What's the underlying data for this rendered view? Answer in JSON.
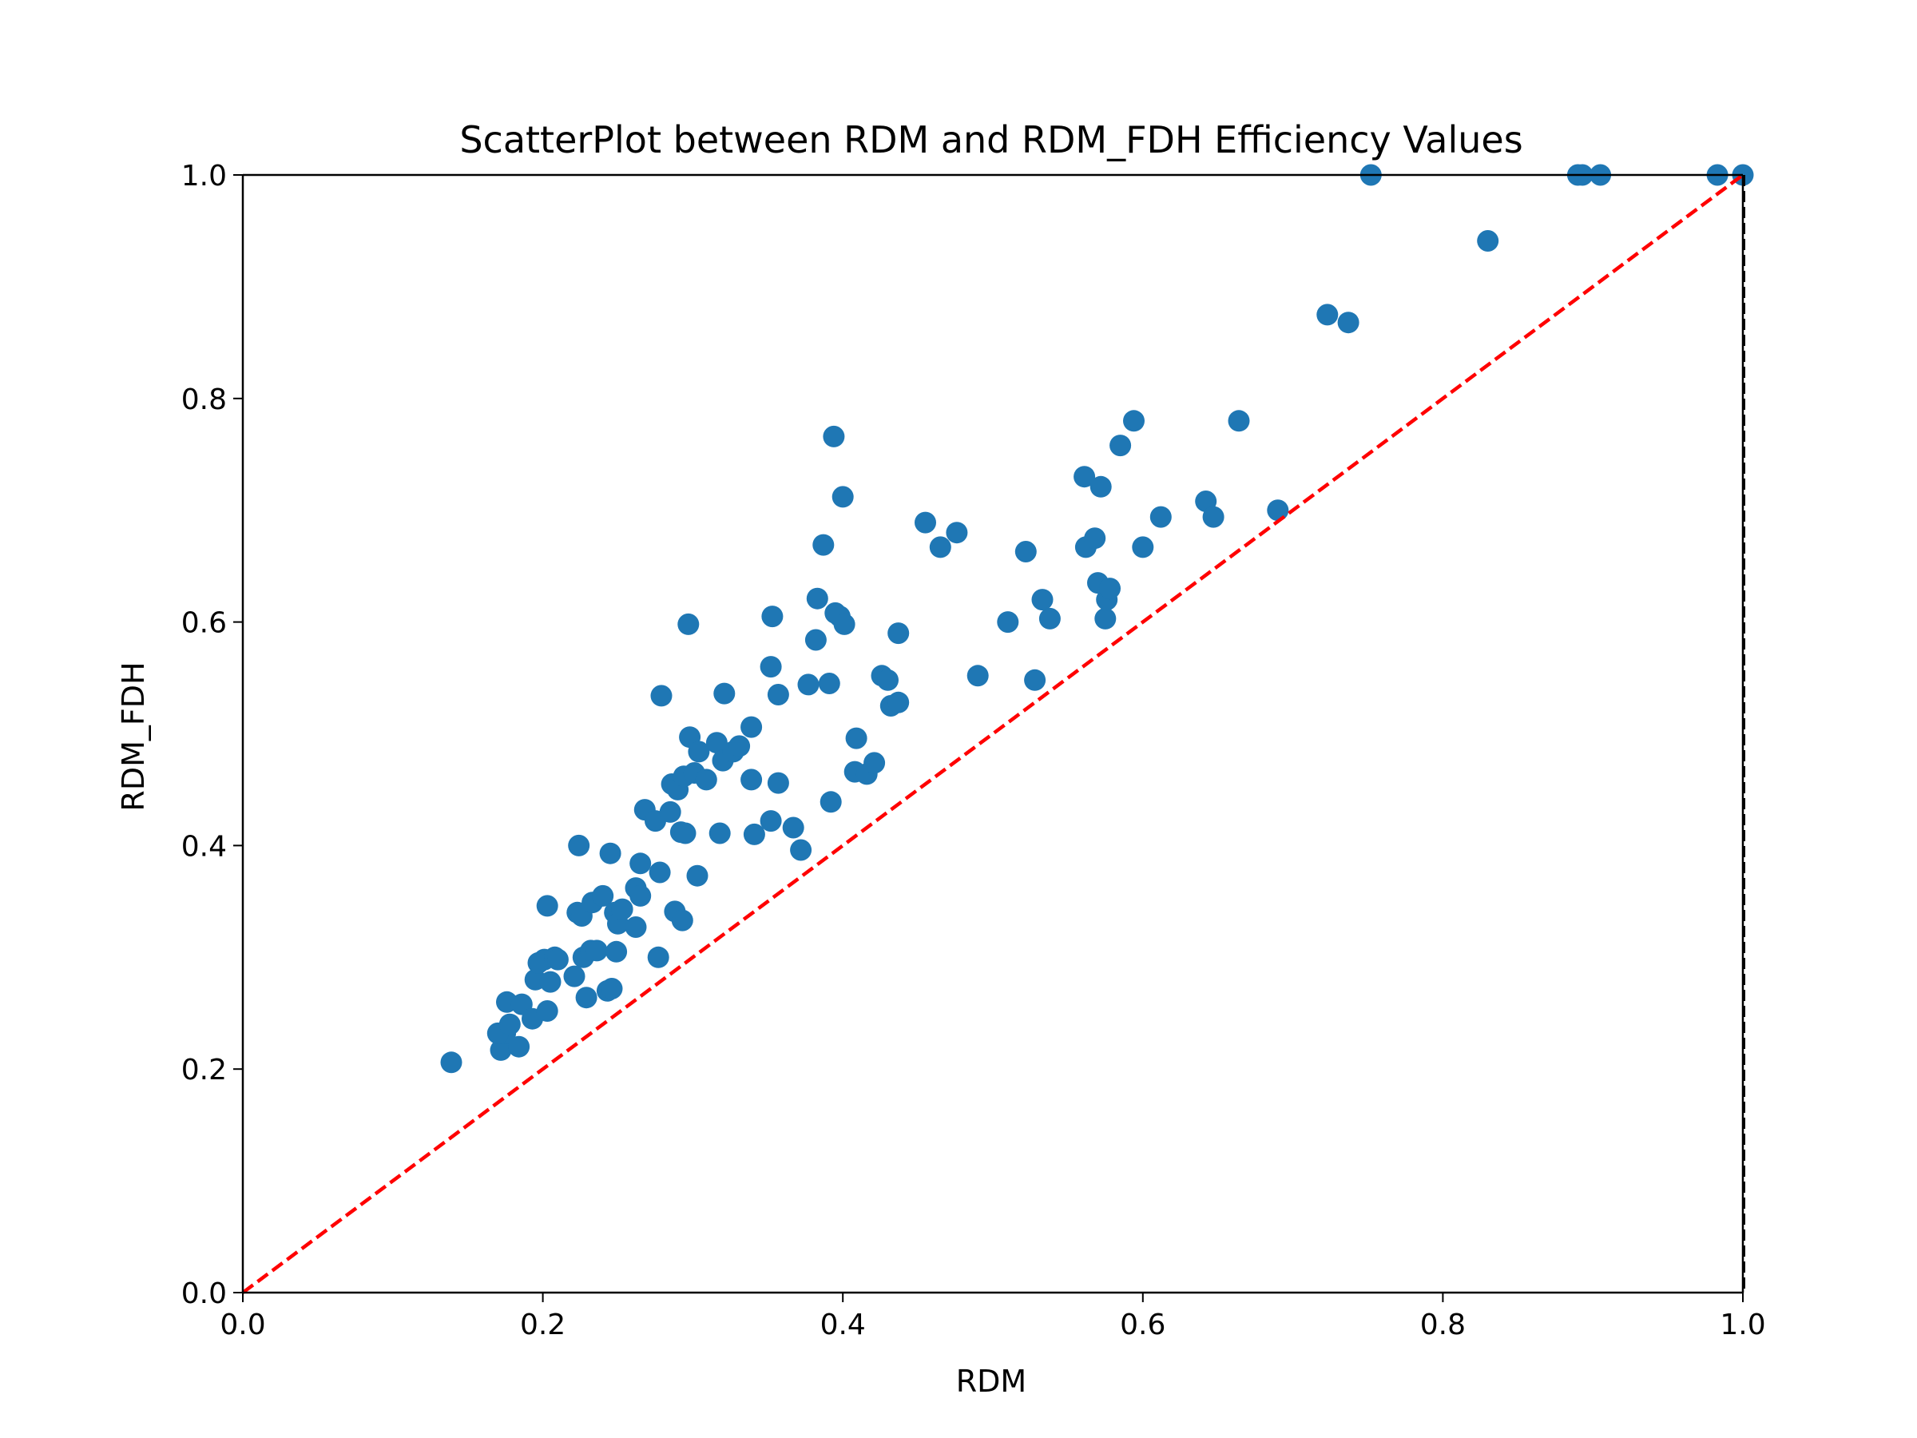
{
  "chart_data": {
    "type": "scatter",
    "title": "ScatterPlot between RDM and RDM_FDH Efficiency Values",
    "xlabel": "RDM",
    "ylabel": "RDM_FDH",
    "xlim": [
      0.0,
      1.0
    ],
    "ylim": [
      0.0,
      1.0
    ],
    "xticks": [
      "0.0",
      "0.2",
      "0.4",
      "0.6",
      "0.8",
      "1.0"
    ],
    "yticks": [
      "0.0",
      "0.2",
      "0.4",
      "0.6",
      "0.8",
      "1.0"
    ],
    "grid": false,
    "legend": "none",
    "point_color": "#1f77b4",
    "reference_line": {
      "from": [
        0.0,
        0.0
      ],
      "to": [
        1.0,
        1.0
      ],
      "style": "dashed",
      "color": "#ff0000"
    },
    "points": [
      [
        0.139,
        0.206
      ],
      [
        0.172,
        0.217
      ],
      [
        0.175,
        0.232
      ],
      [
        0.17,
        0.232
      ],
      [
        0.178,
        0.24
      ],
      [
        0.184,
        0.22
      ],
      [
        0.176,
        0.26
      ],
      [
        0.186,
        0.258
      ],
      [
        0.193,
        0.245
      ],
      [
        0.195,
        0.28
      ],
      [
        0.197,
        0.295
      ],
      [
        0.201,
        0.298
      ],
      [
        0.203,
        0.252
      ],
      [
        0.205,
        0.278
      ],
      [
        0.208,
        0.3
      ],
      [
        0.21,
        0.298
      ],
      [
        0.203,
        0.346
      ],
      [
        0.221,
        0.283
      ],
      [
        0.223,
        0.34
      ],
      [
        0.224,
        0.4
      ],
      [
        0.226,
        0.337
      ],
      [
        0.227,
        0.3
      ],
      [
        0.229,
        0.264
      ],
      [
        0.232,
        0.306
      ],
      [
        0.233,
        0.349
      ],
      [
        0.236,
        0.306
      ],
      [
        0.24,
        0.355
      ],
      [
        0.243,
        0.27
      ],
      [
        0.245,
        0.393
      ],
      [
        0.246,
        0.272
      ],
      [
        0.248,
        0.34
      ],
      [
        0.249,
        0.305
      ],
      [
        0.25,
        0.33
      ],
      [
        0.253,
        0.343
      ],
      [
        0.262,
        0.327
      ],
      [
        0.262,
        0.362
      ],
      [
        0.265,
        0.355
      ],
      [
        0.265,
        0.384
      ],
      [
        0.268,
        0.432
      ],
      [
        0.275,
        0.422
      ],
      [
        0.277,
        0.3
      ],
      [
        0.278,
        0.376
      ],
      [
        0.279,
        0.534
      ],
      [
        0.285,
        0.43
      ],
      [
        0.286,
        0.455
      ],
      [
        0.288,
        0.341
      ],
      [
        0.29,
        0.45
      ],
      [
        0.292,
        0.412
      ],
      [
        0.293,
        0.333
      ],
      [
        0.294,
        0.462
      ],
      [
        0.295,
        0.411
      ],
      [
        0.297,
        0.598
      ],
      [
        0.298,
        0.497
      ],
      [
        0.301,
        0.465
      ],
      [
        0.303,
        0.373
      ],
      [
        0.304,
        0.484
      ],
      [
        0.309,
        0.459
      ],
      [
        0.316,
        0.492
      ],
      [
        0.318,
        0.411
      ],
      [
        0.32,
        0.476
      ],
      [
        0.321,
        0.536
      ],
      [
        0.327,
        0.484
      ],
      [
        0.331,
        0.489
      ],
      [
        0.339,
        0.506
      ],
      [
        0.339,
        0.459
      ],
      [
        0.341,
        0.41
      ],
      [
        0.352,
        0.56
      ],
      [
        0.352,
        0.422
      ],
      [
        0.353,
        0.605
      ],
      [
        0.357,
        0.535
      ],
      [
        0.357,
        0.456
      ],
      [
        0.367,
        0.416
      ],
      [
        0.372,
        0.396
      ],
      [
        0.377,
        0.544
      ],
      [
        0.382,
        0.584
      ],
      [
        0.383,
        0.621
      ],
      [
        0.387,
        0.669
      ],
      [
        0.391,
        0.545
      ],
      [
        0.392,
        0.439
      ],
      [
        0.394,
        0.766
      ],
      [
        0.395,
        0.608
      ],
      [
        0.398,
        0.605
      ],
      [
        0.4,
        0.712
      ],
      [
        0.401,
        0.598
      ],
      [
        0.408,
        0.466
      ],
      [
        0.409,
        0.496
      ],
      [
        0.416,
        0.464
      ],
      [
        0.421,
        0.474
      ],
      [
        0.426,
        0.552
      ],
      [
        0.43,
        0.548
      ],
      [
        0.432,
        0.525
      ],
      [
        0.437,
        0.528
      ],
      [
        0.437,
        0.59
      ],
      [
        0.455,
        0.689
      ],
      [
        0.465,
        0.667
      ],
      [
        0.476,
        0.68
      ],
      [
        0.49,
        0.552
      ],
      [
        0.51,
        0.6
      ],
      [
        0.522,
        0.663
      ],
      [
        0.528,
        0.548
      ],
      [
        0.533,
        0.62
      ],
      [
        0.538,
        0.603
      ],
      [
        0.561,
        0.73
      ],
      [
        0.562,
        0.667
      ],
      [
        0.568,
        0.675
      ],
      [
        0.57,
        0.635
      ],
      [
        0.572,
        0.721
      ],
      [
        0.575,
        0.603
      ],
      [
        0.576,
        0.62
      ],
      [
        0.578,
        0.63
      ],
      [
        0.585,
        0.758
      ],
      [
        0.594,
        0.78
      ],
      [
        0.6,
        0.667
      ],
      [
        0.612,
        0.694
      ],
      [
        0.642,
        0.708
      ],
      [
        0.647,
        0.694
      ],
      [
        0.664,
        0.78
      ],
      [
        0.69,
        0.7
      ],
      [
        0.723,
        0.875
      ],
      [
        0.737,
        0.868
      ],
      [
        0.752,
        1.0
      ],
      [
        0.83,
        0.941
      ],
      [
        0.89,
        1.0
      ],
      [
        0.893,
        1.0
      ],
      [
        0.905,
        1.0
      ],
      [
        0.983,
        1.0
      ],
      [
        1.0,
        1.0
      ]
    ]
  }
}
